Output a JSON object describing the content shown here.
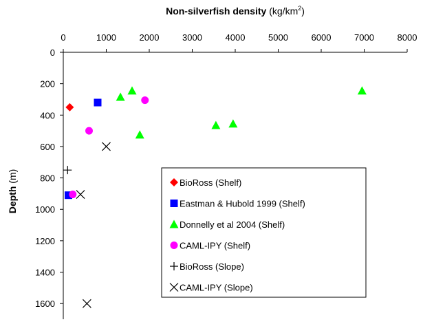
{
  "chart_data": {
    "type": "scatter",
    "x_title": {
      "bold": "Non-silverfish density",
      "unit_prefix": " (kg/km",
      "unit_sup": "2",
      "unit_suffix": ")"
    },
    "y_title": {
      "bold": "Depth",
      "unit": " (m)"
    },
    "xlim": [
      0,
      8000
    ],
    "ylim": [
      0,
      1700
    ],
    "y_inverted": true,
    "x_axis_position": "top",
    "x_ticks": [
      0,
      1000,
      2000,
      3000,
      4000,
      5000,
      6000,
      7000,
      8000
    ],
    "y_ticks": [
      0,
      200,
      400,
      600,
      800,
      1000,
      1200,
      1400,
      1600
    ],
    "grid": false,
    "legend_position": "inside, lower-right",
    "series": [
      {
        "name": "BioRoss (Shelf)",
        "marker": "diamond",
        "color": "#FF0000",
        "points": [
          [
            150,
            350
          ]
        ]
      },
      {
        "name": "Eastman & Hubold 1999 (Shelf)",
        "marker": "square",
        "color": "#0000FF",
        "points": [
          [
            800,
            320
          ],
          [
            120,
            910
          ]
        ]
      },
      {
        "name": "Donnelly et al 2004 (Shelf)",
        "marker": "triangle",
        "color": "#00FF00",
        "points": [
          [
            1600,
            245
          ],
          [
            1330,
            285
          ],
          [
            1780,
            525
          ],
          [
            3550,
            465
          ],
          [
            3950,
            455
          ],
          [
            6950,
            245
          ]
        ]
      },
      {
        "name": "CAML-IPY (Shelf)",
        "marker": "circle",
        "color": "#FF00FF",
        "points": [
          [
            1900,
            305
          ],
          [
            600,
            500
          ],
          [
            220,
            905
          ]
        ]
      },
      {
        "name": "BioRoss (Slope)",
        "marker": "plus",
        "color": "#000000",
        "points": [
          [
            100,
            750
          ]
        ]
      },
      {
        "name": "CAML-IPY (Slope)",
        "marker": "cross",
        "color": "#000000",
        "points": [
          [
            1000,
            600
          ],
          [
            400,
            905
          ],
          [
            550,
            1600
          ]
        ]
      }
    ]
  }
}
